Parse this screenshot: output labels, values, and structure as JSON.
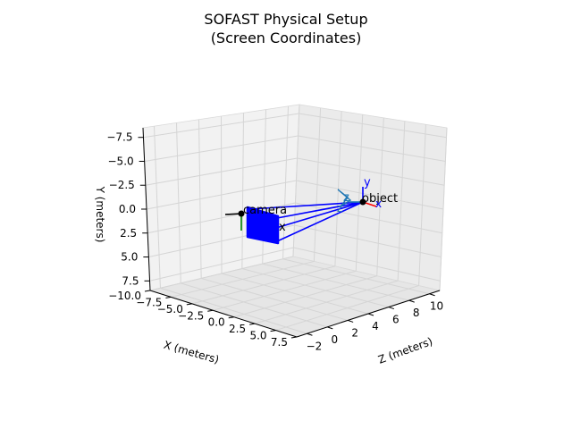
{
  "chart_data": {
    "type": "scatter",
    "projection": "3d",
    "title": "SOFAST Physical Setup",
    "subtitle": "(Screen Coordinates)",
    "xlabel": "X (meters)",
    "ylabel": "Y (meters)",
    "zlabel": "Z (meters)",
    "xlim": [
      -10,
      7.5
    ],
    "ylim": [
      -8.5,
      8.5
    ],
    "zlim": [
      -3,
      11
    ],
    "y_inverted": true,
    "xticks": [
      "−10.0",
      "−7.5",
      "−5.0",
      "−2.5",
      "0.0",
      "2.5",
      "5.0",
      "7.5"
    ],
    "yticks": [
      "−7.5",
      "−5.0",
      "−2.5",
      "0.0",
      "2.5",
      "5.0",
      "7.5"
    ],
    "zticks": [
      "−2",
      "0",
      "2",
      "4",
      "6",
      "8",
      "10"
    ],
    "grid": true,
    "colors": {
      "screen": "#0000ff",
      "ray": "#0000ff",
      "camera_axis_x": "#000000",
      "camera_axis_y": "#008000",
      "object_axis_x": "#ff0000",
      "object_axis_y": "#0000ff",
      "object_axis_z": "#1f77b4",
      "marker": "#000000"
    },
    "annotations": [
      {
        "text": "camera",
        "ref": "camera"
      },
      {
        "text": "object",
        "ref": "object"
      },
      {
        "text": "x",
        "ref": "camera"
      },
      {
        "text": "x",
        "ref": "object"
      },
      {
        "text": "y",
        "ref": "object"
      },
      {
        "text": "z",
        "ref": "object"
      },
      {
        "text": "z",
        "ref": "object"
      }
    ]
  }
}
